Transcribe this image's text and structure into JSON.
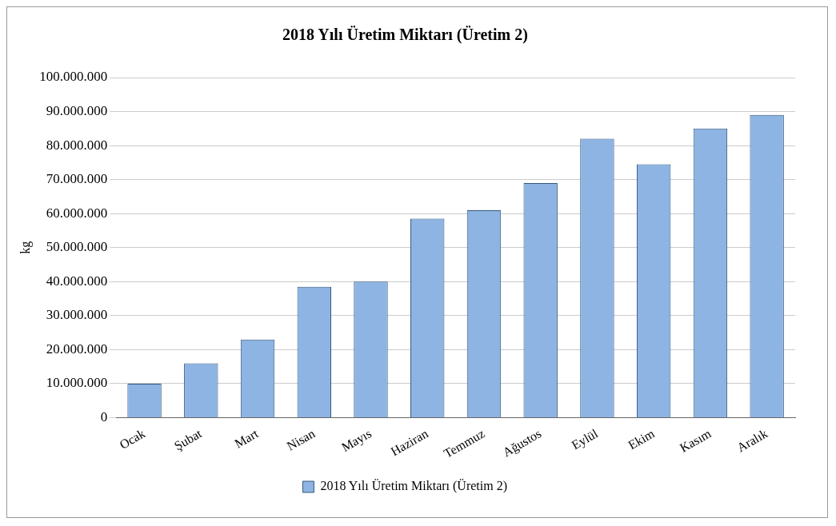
{
  "chart_data": {
    "type": "bar",
    "title": "2018 Yılı Üretim Miktarı (Üretim 2)",
    "ylabel": "kg",
    "categories": [
      "Ocak",
      "Şubat",
      "Mart",
      "Nisan",
      "Mayıs",
      "Haziran",
      "Temmuz",
      "Ağustos",
      "Eylül",
      "Ekim",
      "Kasım",
      "Aralık"
    ],
    "series": [
      {
        "name": "2018 Yılı Üretim Miktarı (Üretim 2)",
        "color": "#8db4e2",
        "values": [
          10000000,
          16000000,
          23000000,
          38500000,
          40000000,
          58500000,
          61000000,
          69000000,
          82000000,
          74500000,
          85000000,
          89000000
        ]
      }
    ],
    "ylim": [
      0,
      100000000
    ],
    "yticks": [
      {
        "value": 0,
        "label": "0"
      },
      {
        "value": 10000000,
        "label": "10.000.000"
      },
      {
        "value": 20000000,
        "label": "20.000.000"
      },
      {
        "value": 30000000,
        "label": "30.000.000"
      },
      {
        "value": 40000000,
        "label": "40.000.000"
      },
      {
        "value": 50000000,
        "label": "50.000.000"
      },
      {
        "value": 60000000,
        "label": "60.000.000"
      },
      {
        "value": 70000000,
        "label": "70.000.000"
      },
      {
        "value": 80000000,
        "label": "80.000.000"
      },
      {
        "value": 90000000,
        "label": "90.000.000"
      },
      {
        "value": 100000000,
        "label": "100.000.000"
      }
    ],
    "grid": "y",
    "legend": "bottom"
  }
}
